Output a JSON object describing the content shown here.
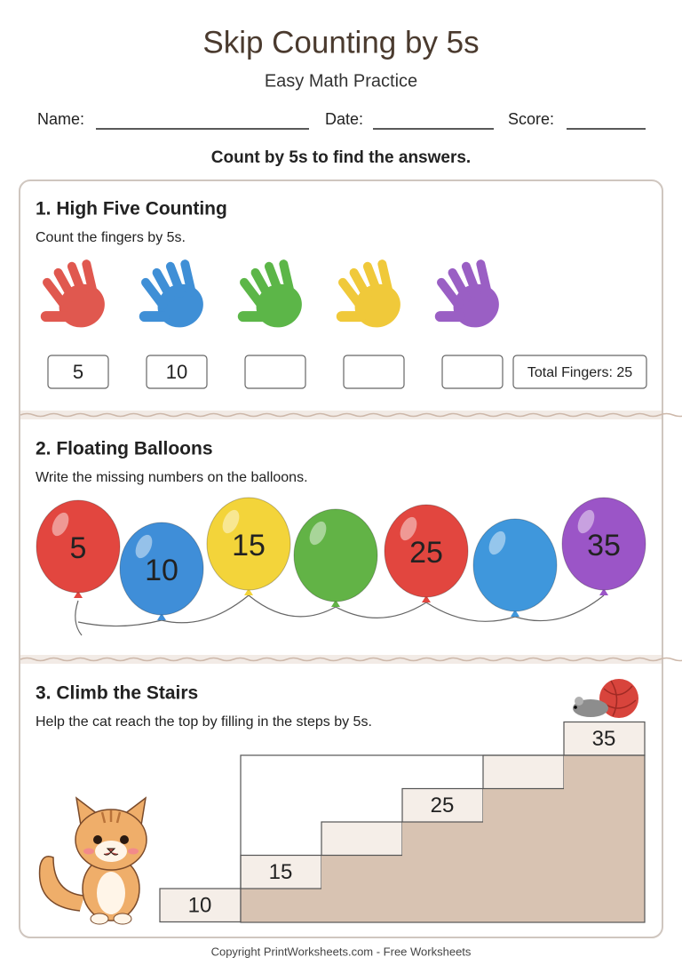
{
  "header": {
    "title": "Skip Counting by 5s",
    "subtitle": "Easy Math Practice"
  },
  "fields": [
    "Name:",
    "Date:",
    "Score:"
  ],
  "instruction": "Count by 5s to find the answers.",
  "sections": [
    {
      "title": "1. High Five Counting",
      "prompt": "Count the fingers by 5s.",
      "answers": [
        5,
        10,
        null,
        null,
        null
      ],
      "colors": [
        "#e0584f",
        "#3f8fd6",
        "#5cb648",
        "#f0c93a",
        "#9a5fc4"
      ],
      "total": "Total Fingers: 25"
    },
    {
      "title": "2. Floating Balloons",
      "prompt": "Write the missing numbers on the balloons.",
      "answers": [
        5,
        10,
        15,
        null,
        25,
        null,
        35
      ],
      "colors": [
        "#e2463f",
        "#3f8ed8",
        "#f3d43a",
        "#62b346",
        "#e2463f",
        "#3f97dc",
        "#9b55c7"
      ]
    },
    {
      "title": "3. Climb the Stairs",
      "prompt": "Help the cat reach the top by filling in the steps by 5s.",
      "answers": [
        10,
        15,
        null,
        25,
        null,
        35
      ]
    }
  ],
  "footer": "Copyright PrintWorksheets.com - Free Worksheets"
}
